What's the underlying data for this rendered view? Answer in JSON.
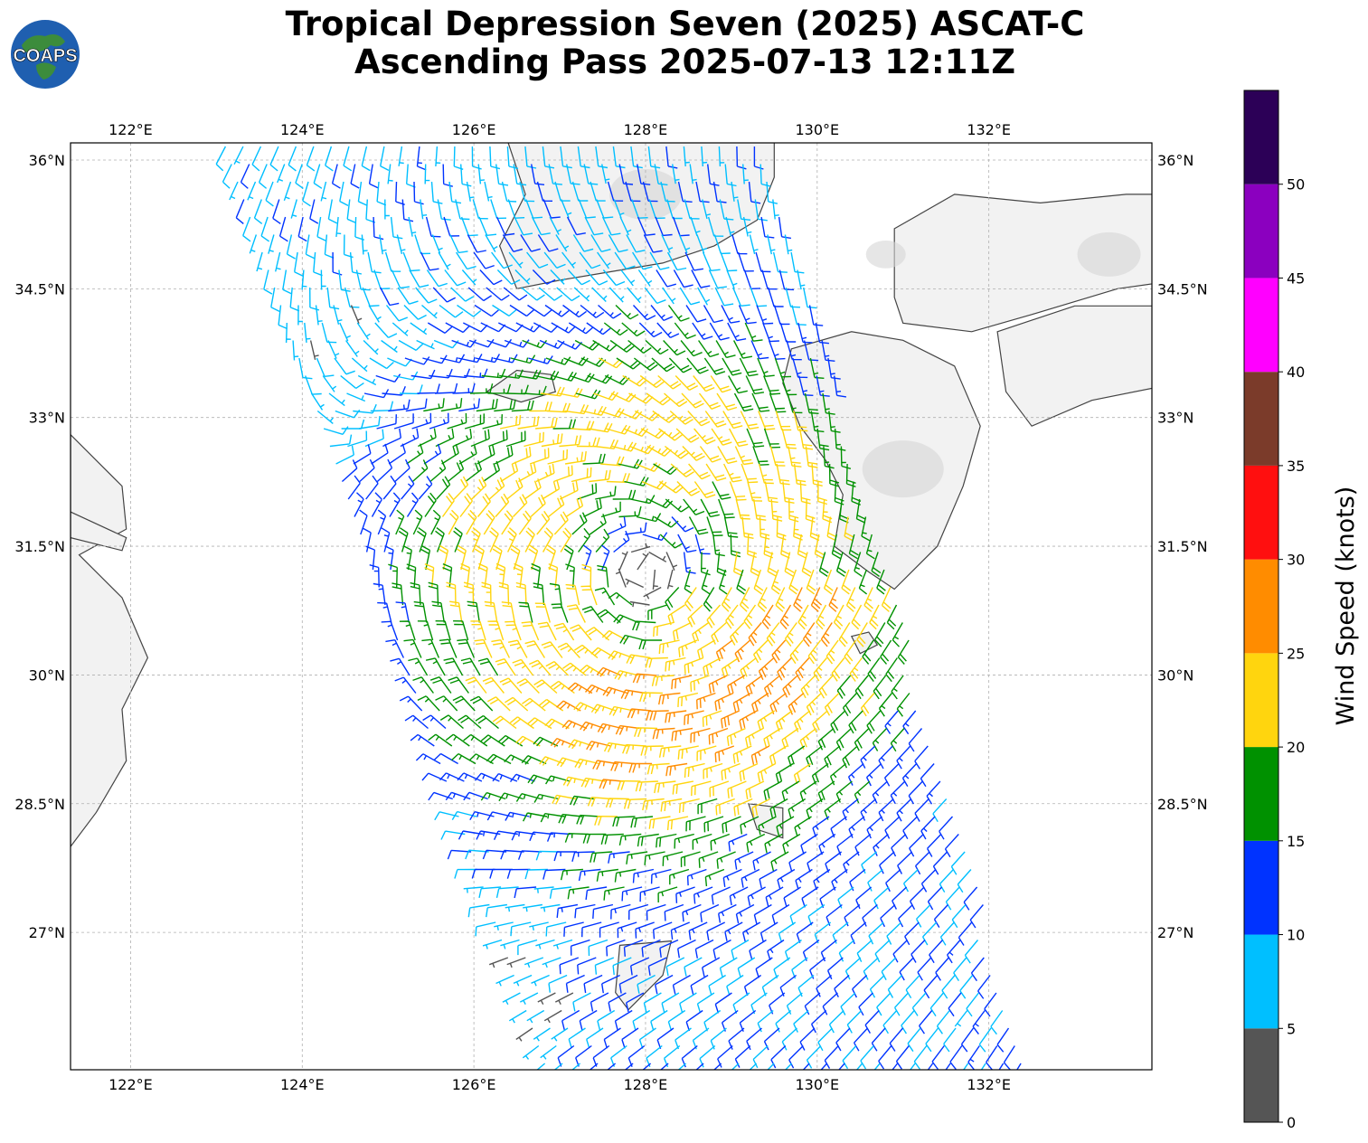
{
  "title": {
    "line1": "Tropical Depression Seven (2025) ASCAT-C",
    "line2": "Ascending Pass 2025-07-13 12:11Z"
  },
  "logo": {
    "text": "COAPS"
  },
  "map": {
    "lon_range": [
      121.3,
      133.9
    ],
    "lat_range": [
      25.4,
      36.2
    ],
    "lon_ticks": [
      "122°E",
      "124°E",
      "126°E",
      "128°E",
      "130°E",
      "132°E"
    ],
    "lat_ticks": [
      "36°N",
      "34.5°N",
      "33°N",
      "31.5°N",
      "30°N",
      "28.5°N",
      "27°N"
    ],
    "gridlines": true,
    "ocean_color": "#ffffff",
    "land_color": "#f2f2f2",
    "coast_color": "#444444"
  },
  "colorbar": {
    "label": "Wind Speed (knots)",
    "ticks": [
      "0",
      "5",
      "10",
      "15",
      "20",
      "25",
      "30",
      "35",
      "40",
      "45",
      "50"
    ],
    "range": [
      0,
      55
    ],
    "colors": [
      "#555555",
      "#00bfff",
      "#0033ff",
      "#009100",
      "#ffd50e",
      "#ff8c00",
      "#ff0f0f",
      "#7b3b2a",
      "#ff00ff",
      "#8b00bf",
      "#2c0057"
    ]
  },
  "storm": {
    "center_lon": 128.0,
    "center_lat": 31.2
  }
}
